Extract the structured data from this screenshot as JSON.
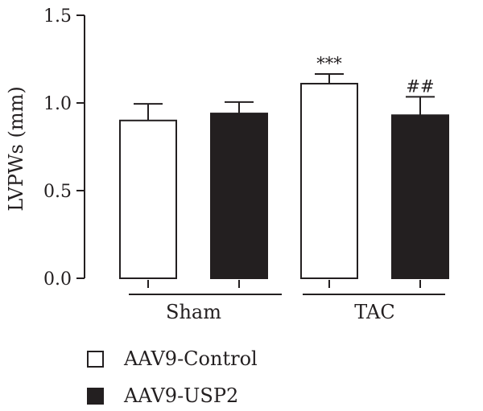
{
  "chart_data": {
    "type": "bar",
    "ylabel": "LVPWs (mm)",
    "ylim": [
      0,
      1.5
    ],
    "yticks": [
      0.0,
      0.5,
      1.0,
      1.5
    ],
    "ytick_labels": [
      "0.0",
      "0.5",
      "1.0",
      "1.5"
    ],
    "groups": [
      "Sham",
      "TAC"
    ],
    "legend_position": "bottom-left",
    "series": [
      {
        "name": "AAV9-Control",
        "color": "#ffffff",
        "values": [
          0.9,
          1.11
        ],
        "errors": [
          0.095,
          0.055
        ],
        "significance": [
          "",
          "***"
        ]
      },
      {
        "name": "AAV9-USP2",
        "color": "#231f20",
        "values": [
          0.94,
          0.93
        ],
        "errors": [
          0.065,
          0.105
        ],
        "significance": [
          "",
          "##"
        ]
      }
    ]
  }
}
